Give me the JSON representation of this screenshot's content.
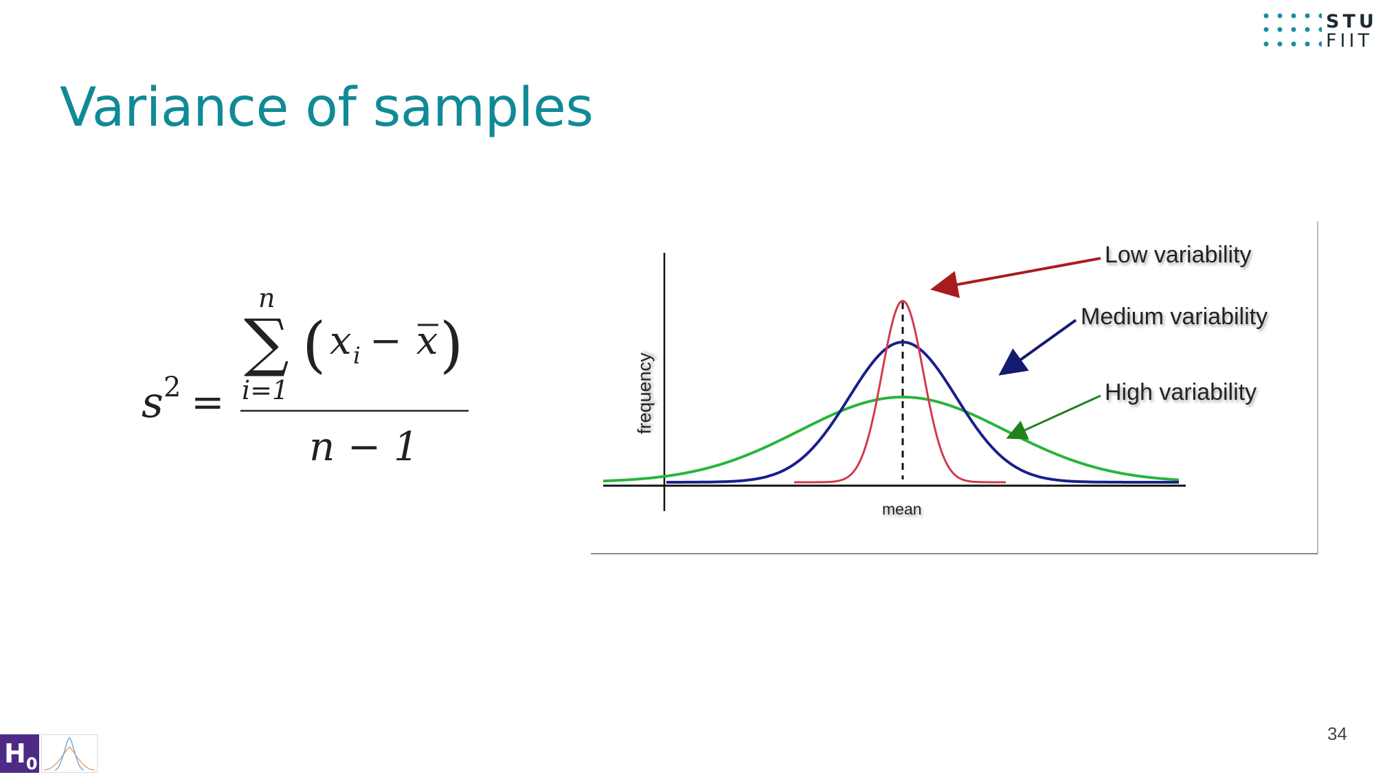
{
  "slide": {
    "title": "Variance of samples",
    "page_number": "34"
  },
  "logo": {
    "line1": "STU",
    "line2": "FIIT",
    "dot_color": "#1a8ba3"
  },
  "formula": {
    "lhs_base": "s",
    "lhs_exponent": "2",
    "equals": "=",
    "sum_upper": "n",
    "sum_symbol": "∑",
    "sum_lower": "i=1",
    "open_paren": "(",
    "term_var": "x",
    "term_sub": "i",
    "minus": "−",
    "mean_symbol": "x",
    "close_paren": ")",
    "denominator": "n − 1"
  },
  "figure": {
    "y_axis_label": "frequency",
    "x_axis_label": "mean",
    "annotations": {
      "low": "Low variability",
      "medium": "Medium variability",
      "high": "High variability"
    },
    "colors": {
      "low": "#d13a4c",
      "medium": "#1a1f8a",
      "high": "#2ab43c",
      "arrow_low": "#a81c20",
      "arrow_medium": "#141a6e",
      "arrow_high": "#22801f"
    }
  },
  "badge": {
    "letter": "H",
    "subscript": "0",
    "color": "#4d2a85"
  }
}
